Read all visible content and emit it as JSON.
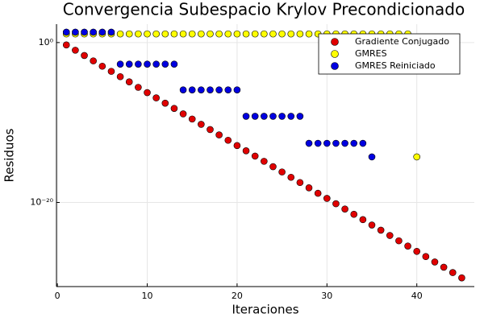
{
  "chart_data": {
    "type": "scatter",
    "title": "Convergencia Subespacio Krylov Precondicionado",
    "x_label": "Iteraciones",
    "y_label": "Residuos",
    "xlim": [
      -0.1,
      46.4
    ],
    "xticks": [
      0,
      10,
      20,
      30,
      40
    ],
    "ylim": [
      3e-31,
      200
    ],
    "y_scale": "log",
    "yticks": [
      {
        "value": 1,
        "label": "10⁰"
      },
      {
        "value": 1e-20,
        "label": "10⁻²⁰"
      }
    ],
    "grid": true,
    "legend_position": "top-right",
    "series": [
      {
        "name": "Gradiente Conjugado",
        "color": "#e00000",
        "x": [
          1,
          2,
          3,
          4,
          5,
          6,
          7,
          8,
          9,
          10,
          11,
          12,
          13,
          14,
          15,
          16,
          17,
          18,
          19,
          20,
          21,
          22,
          23,
          24,
          25,
          26,
          27,
          28,
          29,
          30,
          31,
          32,
          33,
          34,
          35,
          36,
          37,
          38,
          39,
          40,
          41,
          42,
          43,
          44,
          45
        ],
        "values": [
          0.5,
          0.11,
          0.024,
          0.0051,
          0.0011,
          0.00025,
          5.4e-05,
          1.2e-05,
          2.5e-06,
          5.5e-07,
          1.2e-07,
          2.6e-08,
          5.8e-09,
          1.2e-09,
          2.7e-10,
          5.9e-11,
          1.3e-11,
          2.8e-12,
          6e-13,
          1.3e-13,
          2.9e-14,
          6.3e-15,
          1.4e-15,
          3e-16,
          6.5e-17,
          1.4e-17,
          3.1e-18,
          6.8e-19,
          1.4e-19,
          3.2e-20,
          6.9e-21,
          1.5e-21,
          3.3e-22,
          7.1e-23,
          1.5e-23,
          3.4e-24,
          7.4e-25,
          1.6e-25,
          3.5e-26,
          7.6e-27,
          1.7e-27,
          3.6e-28,
          7.9e-29,
          1.7e-29,
          3.7e-30
        ]
      },
      {
        "name": "GMRES",
        "color": "#ffff00",
        "x": [
          1,
          2,
          3,
          4,
          5,
          6,
          7,
          8,
          9,
          10,
          11,
          12,
          13,
          14,
          15,
          16,
          17,
          18,
          19,
          20,
          21,
          22,
          23,
          24,
          25,
          26,
          27,
          28,
          29,
          30,
          31,
          32,
          33,
          34,
          35,
          36,
          37,
          38,
          39,
          40
        ],
        "values": [
          12,
          12,
          12,
          12,
          12,
          12,
          12,
          12,
          12,
          12,
          12,
          12,
          12,
          12,
          12,
          12,
          12,
          12,
          12,
          12,
          12,
          12,
          12,
          12,
          12,
          12,
          12,
          12,
          12,
          12,
          12,
          12,
          12,
          12,
          12,
          12,
          12,
          12,
          12,
          5e-15
        ]
      },
      {
        "name": "GMRES Reiniciado",
        "color": "#0000e0",
        "x": [
          1,
          2,
          3,
          4,
          5,
          6,
          7,
          8,
          9,
          10,
          11,
          12,
          13,
          14,
          15,
          16,
          17,
          18,
          19,
          20,
          21,
          22,
          23,
          24,
          25,
          26,
          27,
          28,
          29,
          30,
          31,
          32,
          33,
          34,
          35
        ],
        "values": [
          20,
          20,
          20,
          20,
          20,
          20,
          0.002,
          0.002,
          0.002,
          0.002,
          0.002,
          0.002,
          0.002,
          1.2e-06,
          1.2e-06,
          1.2e-06,
          1.2e-06,
          1.2e-06,
          1.2e-06,
          1.2e-06,
          6e-10,
          6e-10,
          6e-10,
          6e-10,
          6e-10,
          6e-10,
          6e-10,
          2.5e-13,
          2.5e-13,
          2.5e-13,
          2.5e-13,
          2.5e-13,
          2.5e-13,
          2.5e-13,
          5e-15
        ]
      }
    ]
  }
}
